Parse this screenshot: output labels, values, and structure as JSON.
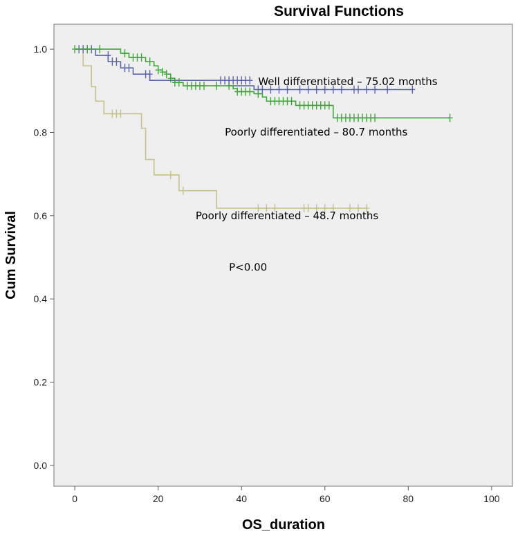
{
  "chart_data": {
    "type": "line",
    "title": "Survival Functions",
    "xlabel": "OS_duration",
    "ylabel": "Cum Survival",
    "xlim": [
      -5,
      105
    ],
    "ylim": [
      -0.05,
      1.06
    ],
    "x_ticks": [
      0,
      20,
      40,
      60,
      80,
      100
    ],
    "y_ticks": [
      0.0,
      0.2,
      0.4,
      0.6,
      0.8,
      1.0
    ],
    "x_tick_labels": [
      "0",
      "20",
      "40",
      "60",
      "80",
      "100"
    ],
    "y_tick_labels": [
      "0.0",
      "0.2",
      "0.4",
      "0.6",
      "0.8",
      "1.0"
    ],
    "grid": false,
    "background": "#efefef",
    "series": [
      {
        "name": "Well differentiated",
        "color": "#5a64b0",
        "steps": [
          [
            0,
            1.0
          ],
          [
            5,
            1.0
          ],
          [
            5,
            0.985
          ],
          [
            8,
            0.985
          ],
          [
            8,
            0.97
          ],
          [
            11,
            0.97
          ],
          [
            11,
            0.955
          ],
          [
            14,
            0.955
          ],
          [
            14,
            0.94
          ],
          [
            18,
            0.94
          ],
          [
            18,
            0.925
          ],
          [
            37,
            0.925
          ],
          [
            37,
            0.912
          ],
          [
            43,
            0.912
          ],
          [
            43,
            0.903
          ],
          [
            81,
            0.903
          ]
        ],
        "censors": [
          [
            1,
            1.0
          ],
          [
            2,
            1.0
          ],
          [
            3,
            1.0
          ],
          [
            4,
            1.0
          ],
          [
            8,
            0.985
          ],
          [
            9,
            0.97
          ],
          [
            10,
            0.97
          ],
          [
            12,
            0.955
          ],
          [
            13,
            0.955
          ],
          [
            17,
            0.94
          ],
          [
            18,
            0.94
          ],
          [
            35,
            0.925
          ],
          [
            36,
            0.925
          ],
          [
            37,
            0.925
          ],
          [
            38,
            0.925
          ],
          [
            39,
            0.925
          ],
          [
            40,
            0.925
          ],
          [
            41,
            0.925
          ],
          [
            42,
            0.925
          ],
          [
            44,
            0.903
          ],
          [
            45,
            0.903
          ],
          [
            47,
            0.903
          ],
          [
            49,
            0.903
          ],
          [
            51,
            0.903
          ],
          [
            54,
            0.903
          ],
          [
            56,
            0.903
          ],
          [
            58,
            0.903
          ],
          [
            60,
            0.903
          ],
          [
            62,
            0.903
          ],
          [
            64,
            0.903
          ],
          [
            67,
            0.903
          ],
          [
            68,
            0.903
          ],
          [
            70,
            0.903
          ],
          [
            72,
            0.903
          ],
          [
            75,
            0.903
          ],
          [
            81,
            0.903
          ]
        ]
      },
      {
        "name": "Poorly differentiated – 80.7 months",
        "color": "#3aaa35",
        "steps": [
          [
            0,
            1.0
          ],
          [
            11,
            1.0
          ],
          [
            11,
            0.99
          ],
          [
            13,
            0.99
          ],
          [
            13,
            0.98
          ],
          [
            17,
            0.98
          ],
          [
            17,
            0.97
          ],
          [
            19,
            0.97
          ],
          [
            19,
            0.96
          ],
          [
            20,
            0.96
          ],
          [
            20,
            0.95
          ],
          [
            21,
            0.95
          ],
          [
            21,
            0.945
          ],
          [
            22,
            0.945
          ],
          [
            22,
            0.94
          ],
          [
            23,
            0.94
          ],
          [
            23,
            0.93
          ],
          [
            24,
            0.93
          ],
          [
            24,
            0.92
          ],
          [
            26,
            0.92
          ],
          [
            26,
            0.912
          ],
          [
            38,
            0.912
          ],
          [
            38,
            0.905
          ],
          [
            39,
            0.905
          ],
          [
            39,
            0.898
          ],
          [
            43,
            0.898
          ],
          [
            43,
            0.893
          ],
          [
            45,
            0.893
          ],
          [
            45,
            0.885
          ],
          [
            46,
            0.885
          ],
          [
            46,
            0.875
          ],
          [
            53,
            0.875
          ],
          [
            53,
            0.865
          ],
          [
            62,
            0.865
          ],
          [
            62,
            0.835
          ],
          [
            90,
            0.835
          ]
        ],
        "censors": [
          [
            0,
            1.0
          ],
          [
            3,
            1.0
          ],
          [
            6,
            1.0
          ],
          [
            12,
            0.99
          ],
          [
            14,
            0.98
          ],
          [
            15,
            0.98
          ],
          [
            16,
            0.98
          ],
          [
            18,
            0.97
          ],
          [
            20,
            0.95
          ],
          [
            21,
            0.945
          ],
          [
            22,
            0.94
          ],
          [
            23,
            0.93
          ],
          [
            24,
            0.92
          ],
          [
            25,
            0.92
          ],
          [
            27,
            0.912
          ],
          [
            28,
            0.912
          ],
          [
            29,
            0.912
          ],
          [
            30,
            0.912
          ],
          [
            31,
            0.912
          ],
          [
            34,
            0.912
          ],
          [
            37,
            0.912
          ],
          [
            39,
            0.898
          ],
          [
            40,
            0.898
          ],
          [
            41,
            0.898
          ],
          [
            42,
            0.898
          ],
          [
            44,
            0.893
          ],
          [
            47,
            0.875
          ],
          [
            48,
            0.875
          ],
          [
            49,
            0.875
          ],
          [
            50,
            0.875
          ],
          [
            51,
            0.875
          ],
          [
            52,
            0.875
          ],
          [
            54,
            0.865
          ],
          [
            55,
            0.865
          ],
          [
            56,
            0.865
          ],
          [
            57,
            0.865
          ],
          [
            58,
            0.865
          ],
          [
            59,
            0.865
          ],
          [
            60,
            0.865
          ],
          [
            61,
            0.865
          ],
          [
            63,
            0.835
          ],
          [
            64,
            0.835
          ],
          [
            65,
            0.835
          ],
          [
            66,
            0.835
          ],
          [
            67,
            0.835
          ],
          [
            68,
            0.835
          ],
          [
            69,
            0.835
          ],
          [
            70,
            0.835
          ],
          [
            71,
            0.835
          ],
          [
            72,
            0.835
          ],
          [
            90,
            0.835
          ]
        ]
      },
      {
        "name": "Poorly differentiated – 48.7 months",
        "color": "#c8c28a",
        "steps": [
          [
            0,
            1.0
          ],
          [
            2,
            1.0
          ],
          [
            2,
            0.96
          ],
          [
            4,
            0.96
          ],
          [
            4,
            0.91
          ],
          [
            5,
            0.91
          ],
          [
            5,
            0.875
          ],
          [
            7,
            0.875
          ],
          [
            7,
            0.845
          ],
          [
            16,
            0.845
          ],
          [
            16,
            0.81
          ],
          [
            17,
            0.81
          ],
          [
            17,
            0.735
          ],
          [
            19,
            0.735
          ],
          [
            19,
            0.698
          ],
          [
            25,
            0.698
          ],
          [
            25,
            0.66
          ],
          [
            34,
            0.66
          ],
          [
            34,
            0.618
          ],
          [
            70,
            0.618
          ]
        ],
        "censors": [
          [
            9,
            0.845
          ],
          [
            10,
            0.845
          ],
          [
            11,
            0.845
          ],
          [
            23,
            0.698
          ],
          [
            26,
            0.66
          ],
          [
            44,
            0.618
          ],
          [
            46,
            0.618
          ],
          [
            48,
            0.618
          ],
          [
            55,
            0.618
          ],
          [
            56,
            0.618
          ],
          [
            58,
            0.618
          ],
          [
            60,
            0.618
          ],
          [
            62,
            0.618
          ],
          [
            66,
            0.618
          ],
          [
            68,
            0.618
          ],
          [
            70,
            0.618
          ]
        ]
      }
    ],
    "annotations": [
      {
        "text": "Well differentiated – 75.02 months",
        "x": 44,
        "y": 0.922
      },
      {
        "text": "Poorly differentiated – 80.7 months",
        "x": 36,
        "y": 0.801
      },
      {
        "text": "Poorly differentiated – 48.7 months",
        "x": 29,
        "y": 0.6
      },
      {
        "text": "P<0.00",
        "x": 37,
        "y": 0.476
      }
    ]
  }
}
